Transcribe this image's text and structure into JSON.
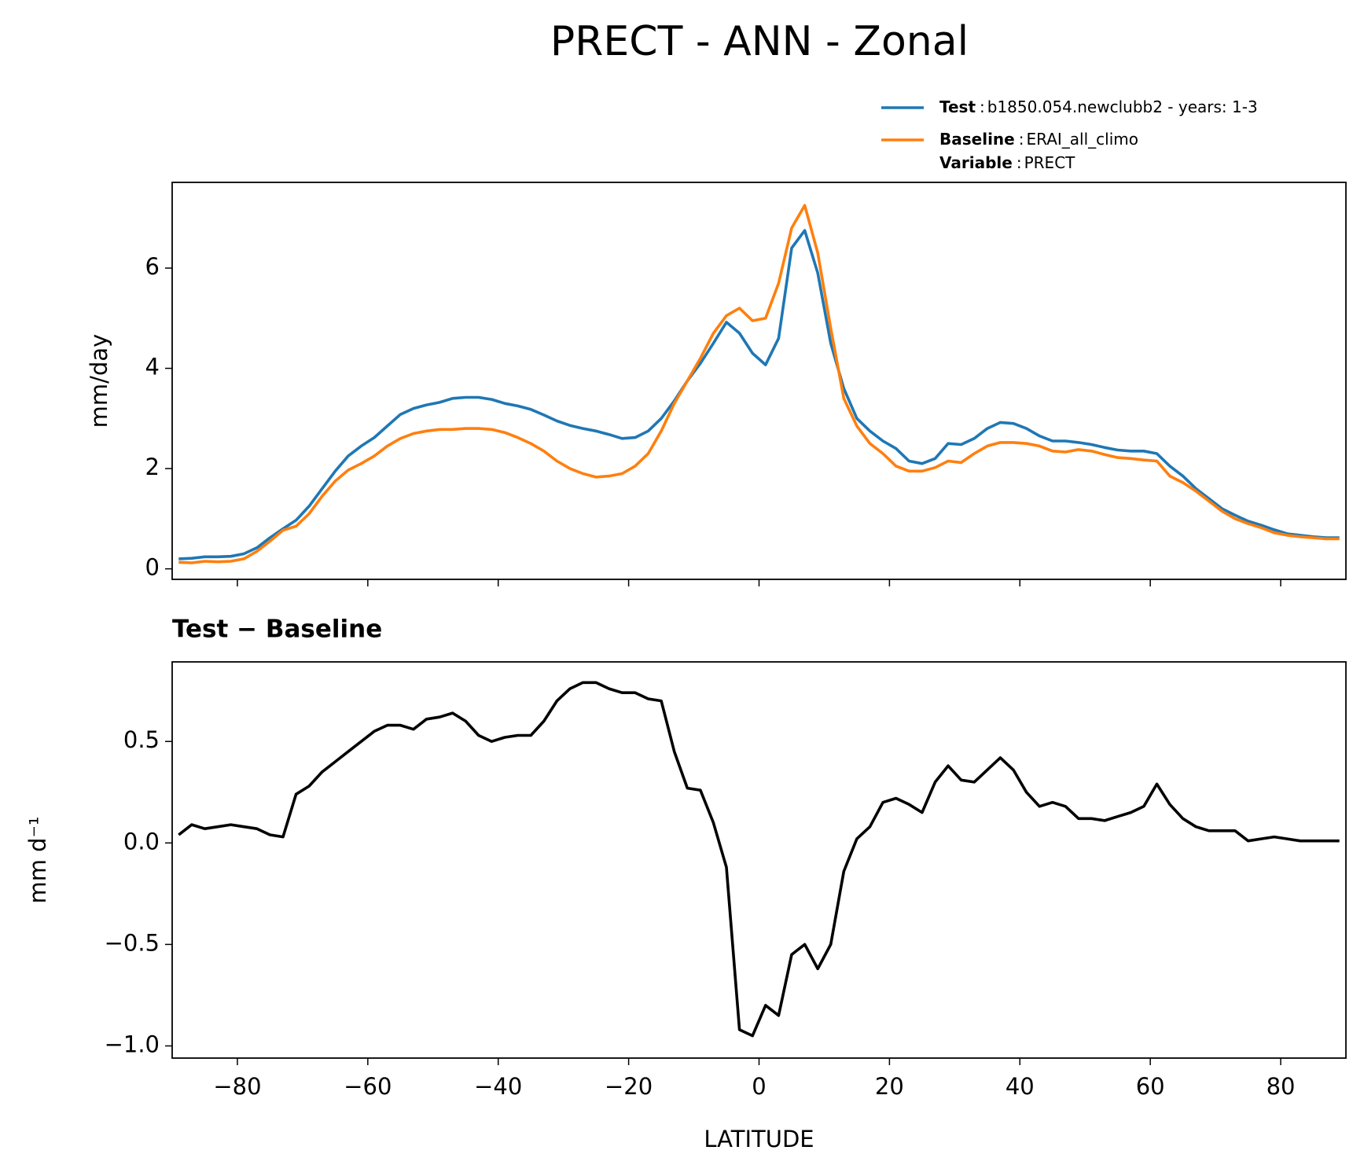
{
  "title": "PRECT - ANN - Zonal",
  "chart_data": [
    {
      "type": "line",
      "ylabel": "mm/day",
      "x": [
        -89,
        -87,
        -85,
        -83,
        -81,
        -79,
        -77,
        -75,
        -73,
        -71,
        -69,
        -67,
        -65,
        -63,
        -61,
        -59,
        -57,
        -55,
        -53,
        -51,
        -49,
        -47,
        -45,
        -43,
        -41,
        -39,
        -37,
        -35,
        -33,
        -31,
        -29,
        -27,
        -25,
        -23,
        -21,
        -19,
        -17,
        -15,
        -13,
        -11,
        -9,
        -7,
        -5,
        -3,
        -1,
        1,
        3,
        5,
        7,
        9,
        11,
        13,
        15,
        17,
        19,
        21,
        23,
        25,
        27,
        29,
        31,
        33,
        35,
        37,
        39,
        41,
        43,
        45,
        47,
        49,
        51,
        53,
        55,
        57,
        59,
        61,
        63,
        65,
        67,
        69,
        71,
        73,
        75,
        77,
        79,
        81,
        83,
        85,
        87,
        89
      ],
      "series": [
        {
          "name": "Test",
          "separator": ":",
          "label": "b1850.054.newclubb2 - years: 1-3",
          "color": "#1f77b4",
          "values": [
            0.2,
            0.21,
            0.24,
            0.24,
            0.25,
            0.3,
            0.42,
            0.62,
            0.8,
            0.97,
            1.25,
            1.6,
            1.95,
            2.25,
            2.45,
            2.62,
            2.85,
            3.08,
            3.2,
            3.27,
            3.32,
            3.4,
            3.42,
            3.42,
            3.38,
            3.3,
            3.25,
            3.18,
            3.07,
            2.95,
            2.86,
            2.8,
            2.75,
            2.68,
            2.6,
            2.62,
            2.75,
            3.0,
            3.35,
            3.75,
            4.1,
            4.5,
            4.92,
            4.7,
            4.3,
            4.07,
            4.6,
            6.4,
            6.75,
            5.9,
            4.5,
            3.6,
            3.0,
            2.75,
            2.55,
            2.4,
            2.15,
            2.1,
            2.2,
            2.5,
            2.48,
            2.6,
            2.8,
            2.92,
            2.9,
            2.8,
            2.65,
            2.55,
            2.55,
            2.52,
            2.48,
            2.42,
            2.37,
            2.35,
            2.35,
            2.3,
            2.05,
            1.85,
            1.6,
            1.4,
            1.2,
            1.07,
            0.95,
            0.87,
            0.78,
            0.7,
            0.67,
            0.64,
            0.62,
            0.62
          ]
        },
        {
          "name": "Baseline",
          "separator": ":",
          "label": "ERAI_all_climo",
          "color": "#ff7f0e",
          "values": [
            0.13,
            0.12,
            0.15,
            0.14,
            0.15,
            0.2,
            0.35,
            0.55,
            0.77,
            0.85,
            1.1,
            1.45,
            1.75,
            1.97,
            2.1,
            2.25,
            2.45,
            2.6,
            2.7,
            2.75,
            2.78,
            2.78,
            2.8,
            2.8,
            2.78,
            2.72,
            2.62,
            2.5,
            2.35,
            2.15,
            2.0,
            1.9,
            1.83,
            1.85,
            1.9,
            2.05,
            2.3,
            2.75,
            3.3,
            3.75,
            4.2,
            4.7,
            5.05,
            5.2,
            4.95,
            5.0,
            5.7,
            6.8,
            7.25,
            6.3,
            4.8,
            3.4,
            2.85,
            2.5,
            2.3,
            2.05,
            1.95,
            1.95,
            2.02,
            2.15,
            2.12,
            2.3,
            2.45,
            2.52,
            2.52,
            2.5,
            2.45,
            2.35,
            2.33,
            2.38,
            2.35,
            2.28,
            2.22,
            2.2,
            2.17,
            2.15,
            1.85,
            1.72,
            1.55,
            1.35,
            1.15,
            1.0,
            0.9,
            0.82,
            0.72,
            0.67,
            0.64,
            0.62,
            0.6,
            0.6
          ]
        }
      ],
      "legend_note": {
        "name": "Variable",
        "separator": ":",
        "label": "PRECT"
      },
      "xlim": [
        -90,
        90
      ],
      "ylim": [
        -0.21,
        7.71
      ],
      "yticks": [
        0,
        2,
        4,
        6
      ]
    },
    {
      "type": "line",
      "title": "Test − Baseline",
      "ylabel": "mm d⁻¹",
      "xlabel": "LATITUDE",
      "x": [
        -89,
        -87,
        -85,
        -83,
        -81,
        -79,
        -77,
        -75,
        -73,
        -71,
        -69,
        -67,
        -65,
        -63,
        -61,
        -59,
        -57,
        -55,
        -53,
        -51,
        -49,
        -47,
        -45,
        -43,
        -41,
        -39,
        -37,
        -35,
        -33,
        -31,
        -29,
        -27,
        -25,
        -23,
        -21,
        -19,
        -17,
        -15,
        -13,
        -11,
        -9,
        -7,
        -5,
        -3,
        -1,
        1,
        3,
        5,
        7,
        9,
        11,
        13,
        15,
        17,
        19,
        21,
        23,
        25,
        27,
        29,
        31,
        33,
        35,
        37,
        39,
        41,
        43,
        45,
        47,
        49,
        51,
        53,
        55,
        57,
        59,
        61,
        63,
        65,
        67,
        69,
        71,
        73,
        75,
        77,
        79,
        81,
        83,
        85,
        87,
        89
      ],
      "color": "#000000",
      "values": [
        0.04,
        0.09,
        0.07,
        0.08,
        0.09,
        0.08,
        0.07,
        0.04,
        0.03,
        0.24,
        0.28,
        0.35,
        0.4,
        0.45,
        0.5,
        0.55,
        0.58,
        0.58,
        0.56,
        0.61,
        0.62,
        0.64,
        0.6,
        0.53,
        0.5,
        0.52,
        0.53,
        0.53,
        0.6,
        0.7,
        0.76,
        0.79,
        0.79,
        0.76,
        0.74,
        0.74,
        0.71,
        0.7,
        0.45,
        0.27,
        0.26,
        0.1,
        -0.12,
        -0.92,
        -0.95,
        -0.8,
        -0.85,
        -0.55,
        -0.5,
        -0.62,
        -0.5,
        -0.14,
        0.02,
        0.08,
        0.2,
        0.22,
        0.19,
        0.15,
        0.3,
        0.38,
        0.31,
        0.3,
        0.36,
        0.42,
        0.36,
        0.25,
        0.18,
        0.2,
        0.18,
        0.12,
        0.12,
        0.11,
        0.13,
        0.15,
        0.18,
        0.29,
        0.19,
        0.12,
        0.08,
        0.06,
        0.06,
        0.06,
        0.01,
        0.02,
        0.03,
        0.02,
        0.01,
        0.01,
        0.01,
        0.01
      ],
      "xlim": [
        -90,
        90
      ],
      "ylim": [
        -1.06,
        0.892
      ],
      "xticks": [
        {
          "value": -80,
          "label": "−80"
        },
        {
          "value": -60,
          "label": "−60"
        },
        {
          "value": -40,
          "label": "−40"
        },
        {
          "value": -20,
          "label": "−20"
        },
        0,
        20,
        40,
        60,
        80
      ],
      "yticks": [
        {
          "value": -1.0,
          "label": "−1.0"
        },
        {
          "value": -0.5,
          "label": "−0.5"
        },
        {
          "value": 0.0,
          "label": "0.0"
        },
        {
          "value": 0.5,
          "label": "0.5"
        }
      ]
    }
  ]
}
